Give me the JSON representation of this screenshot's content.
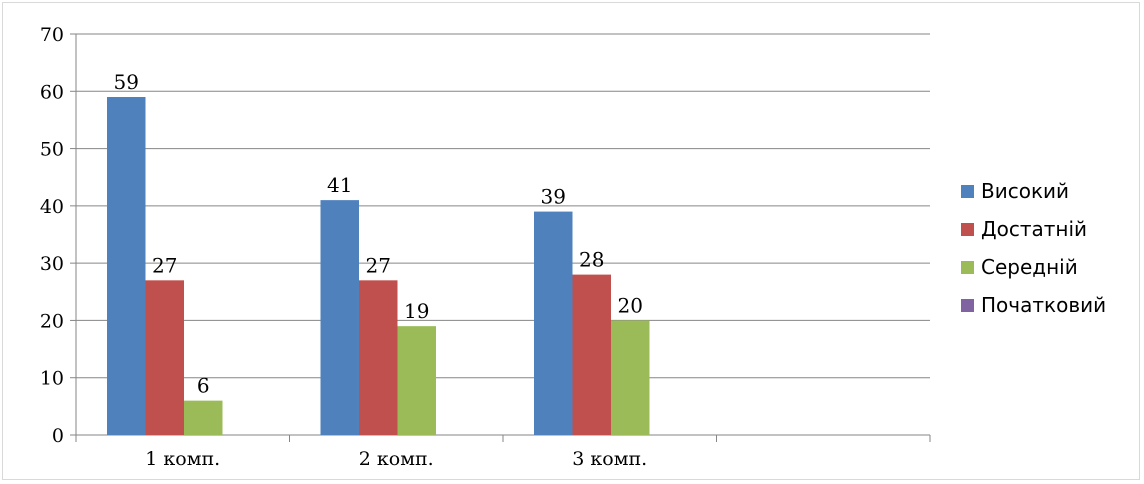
{
  "chart_data": {
    "type": "bar",
    "categories": [
      "1 комп.",
      "2 комп.",
      "3 комп.",
      ""
    ],
    "series": [
      {
        "name": "Високий",
        "color": "#4f81bd",
        "values": [
          59,
          41,
          39,
          null
        ]
      },
      {
        "name": "Достатній",
        "color": "#c0504d",
        "values": [
          27,
          27,
          28,
          null
        ]
      },
      {
        "name": "Середній",
        "color": "#9bbb59",
        "values": [
          6,
          19,
          20,
          null
        ]
      },
      {
        "name": "Початковий",
        "color": "#8064a2",
        "values": [
          null,
          null,
          null,
          null
        ]
      }
    ],
    "ylim": [
      0,
      70
    ],
    "yticks": [
      "0",
      "10",
      "20",
      "30",
      "40",
      "50",
      "60",
      "70"
    ],
    "grid": true,
    "legend": "right",
    "data_labels": true
  }
}
